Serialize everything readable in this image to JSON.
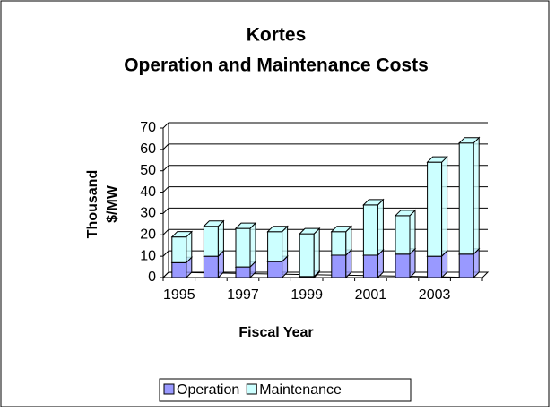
{
  "chart_data": {
    "type": "bar3d_stacked",
    "title": "Kortes",
    "subtitle": "Operation and Maintenance Costs",
    "y_label": [
      "Thousand",
      "$/MW"
    ],
    "x_label": "Fiscal Year",
    "categories": [
      "1995",
      null,
      "1997",
      null,
      "1999",
      null,
      "2001",
      null,
      "2003",
      null
    ],
    "series": [
      {
        "name": "Operation",
        "color": "#9999ff",
        "values": [
          7,
          10,
          5,
          7.5,
          0.5,
          10.5,
          10.5,
          11,
          10,
          11
        ]
      },
      {
        "name": "Maintenance",
        "color": "#ccffff",
        "values": [
          12,
          14,
          18,
          14,
          20,
          11,
          23.5,
          18,
          44,
          52
        ]
      }
    ],
    "ylim": [
      0,
      70
    ],
    "yticks": [
      0,
      10,
      20,
      30,
      40,
      50,
      60,
      70
    ],
    "grid": true,
    "legend": "bottom"
  }
}
